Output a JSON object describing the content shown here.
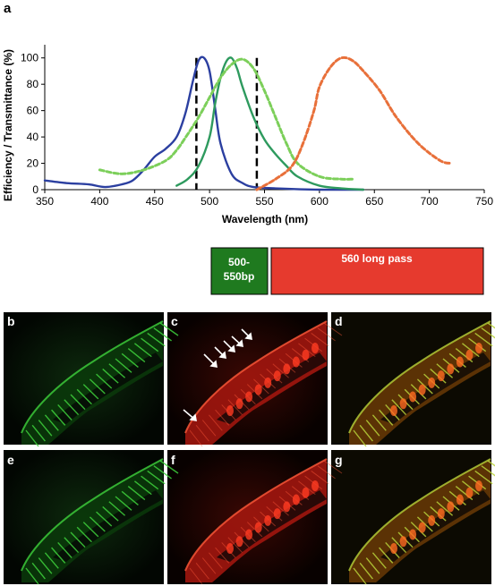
{
  "panel_labels": {
    "a": "a",
    "b": "b",
    "c": "c",
    "d": "d",
    "e": "e",
    "f": "f",
    "g": "g"
  },
  "colors": {
    "blue": "#2b3fa0",
    "green_solid": "#2e9a5e",
    "green_dotted": "#7ccf5a",
    "orange_dotted": "#e8703a",
    "filter_bp": "#1f7a1f",
    "filter_lp": "#e63a2e",
    "img_green": "#3fd23c",
    "img_red": "#e8261c"
  },
  "filters": {
    "bandpass_line1": "500-",
    "bandpass_line2": "550bp",
    "longpass": "560 long pass"
  },
  "chart_data": {
    "type": "line",
    "xlabel": "Wavelength (nm)",
    "ylabel": "Efficiency / Transmittance (%)",
    "xlim": [
      350,
      750
    ],
    "ylim": [
      0,
      110
    ],
    "xticks": [
      "350",
      "400",
      "450",
      "500",
      "550",
      "600",
      "650",
      "700",
      "750"
    ],
    "yticks": [
      "0",
      "20",
      "40",
      "60",
      "80",
      "100"
    ],
    "grid": false,
    "vlines": [
      488,
      543
    ],
    "series": [
      {
        "style": "solid-blue",
        "x": [
          350,
          370,
          390,
          405,
          420,
          430,
          440,
          450,
          460,
          470,
          478,
          485,
          490,
          495,
          500,
          505,
          510,
          520,
          530,
          540,
          560,
          600,
          640
        ],
        "y": [
          7,
          5,
          4,
          2,
          4,
          7,
          15,
          25,
          31,
          40,
          58,
          83,
          98,
          100,
          90,
          62,
          35,
          12,
          5,
          2,
          1,
          0,
          0
        ]
      },
      {
        "style": "solid-green",
        "x": [
          470,
          480,
          490,
          500,
          505,
          510,
          515,
          520,
          525,
          530,
          540,
          550,
          560,
          570,
          580,
          600,
          620,
          640
        ],
        "y": [
          3,
          8,
          18,
          40,
          65,
          85,
          97,
          100,
          92,
          78,
          55,
          38,
          27,
          18,
          10,
          3,
          1,
          0
        ]
      },
      {
        "style": "dotted-green",
        "x": [
          400,
          420,
          440,
          460,
          470,
          480,
          490,
          500,
          510,
          520,
          530,
          540,
          550,
          560,
          570,
          580,
          600,
          620,
          630
        ],
        "y": [
          15,
          12,
          15,
          22,
          30,
          42,
          55,
          70,
          85,
          95,
          99,
          92,
          75,
          55,
          35,
          20,
          10,
          8,
          8
        ]
      },
      {
        "style": "dotted-orange",
        "x": [
          543,
          560,
          575,
          585,
          595,
          600,
          610,
          620,
          630,
          640,
          655,
          670,
          690,
          710,
          720
        ],
        "y": [
          0,
          8,
          18,
          35,
          60,
          78,
          93,
          100,
          98,
          90,
          75,
          55,
          35,
          22,
          20
        ]
      }
    ]
  }
}
